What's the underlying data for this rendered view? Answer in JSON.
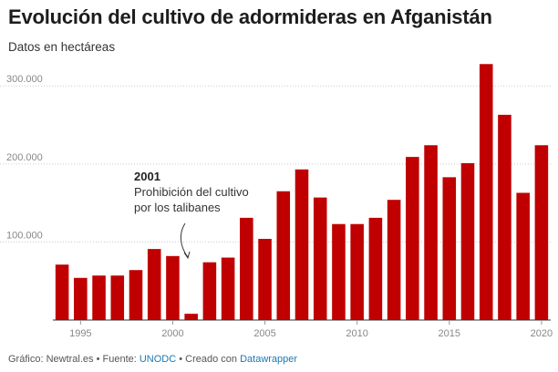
{
  "title": "Evolución del cultivo de adormideras en Afganistán",
  "subtitle": "Datos en hectáreas",
  "annotation": {
    "year_label": "2001",
    "line1": "Prohibición del cultivo",
    "line2": "por los talibanes"
  },
  "footer": {
    "prefix": "Gráfico: Newtral.es • Fuente: ",
    "source_link": "UNODC",
    "middle": " • Creado con ",
    "tool_link": "Datawrapper"
  },
  "colors": {
    "bar": "#c00000",
    "grid": "#cccccc",
    "axis": "#333333",
    "tick_text": "#888888"
  },
  "chart_data": {
    "type": "bar",
    "x": [
      1994,
      1995,
      1996,
      1997,
      1998,
      1999,
      2000,
      2001,
      2002,
      2003,
      2004,
      2005,
      2006,
      2007,
      2008,
      2009,
      2010,
      2011,
      2012,
      2013,
      2014,
      2015,
      2016,
      2017,
      2018,
      2019,
      2020
    ],
    "values": [
      71000,
      54000,
      57000,
      57000,
      64000,
      91000,
      82000,
      8000,
      74000,
      80000,
      131000,
      104000,
      165000,
      193000,
      157000,
      123000,
      123000,
      131000,
      154000,
      209000,
      224000,
      183000,
      201000,
      328000,
      263000,
      163000,
      224000
    ],
    "ylim": [
      0,
      340000
    ],
    "y_ticks": [
      100000,
      200000,
      300000
    ],
    "y_tick_labels": [
      "100.000",
      "200.000",
      "300.000"
    ],
    "x_ticks": [
      1995,
      2000,
      2005,
      2010,
      2015,
      2020
    ],
    "x_tick_labels": [
      "1995",
      "2000",
      "2005",
      "2010",
      "2015",
      "2020"
    ],
    "grid": true
  }
}
